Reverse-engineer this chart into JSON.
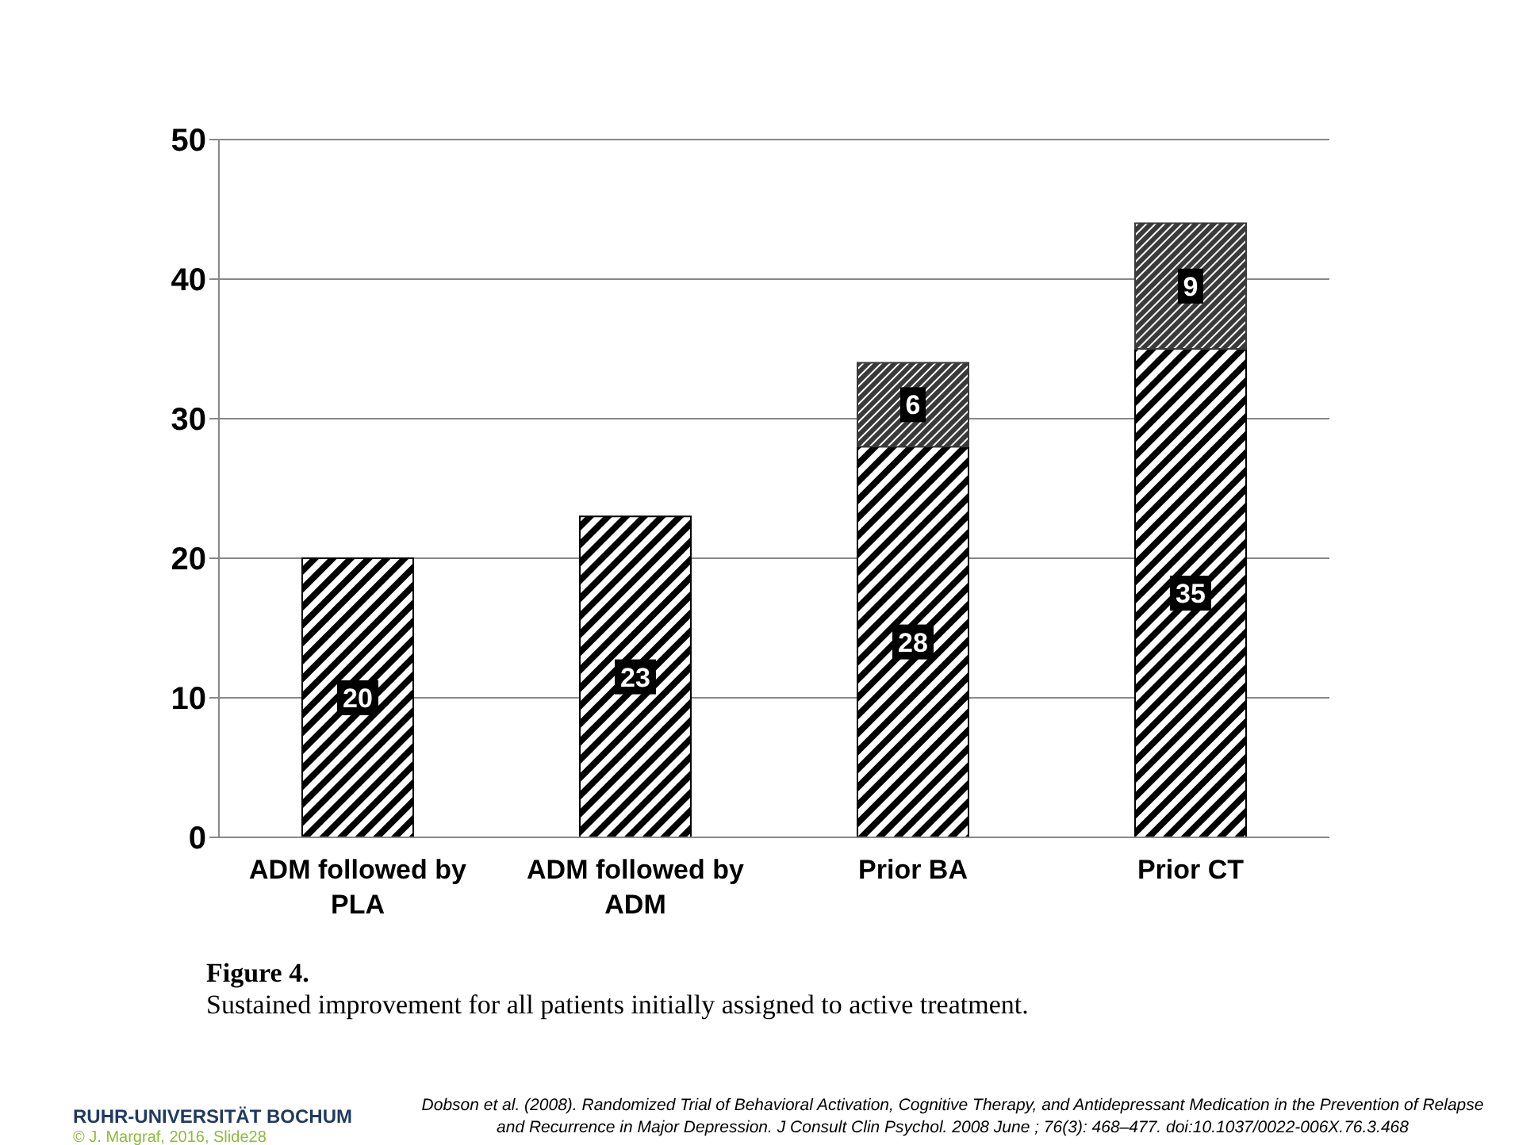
{
  "chart_data": {
    "type": "bar",
    "stacked": true,
    "categories": [
      "ADM followed by PLA",
      "ADM followed by ADM",
      "Prior BA",
      "Prior CT"
    ],
    "series": [
      {
        "color": "#000000",
        "values": [
          20,
          23,
          28,
          35
        ]
      },
      {
        "color": "#3a3a3a",
        "values": [
          null,
          null,
          6,
          9
        ]
      }
    ],
    "ylim": [
      0,
      50
    ],
    "yticks": [
      0,
      10,
      20,
      30,
      40,
      50
    ],
    "grid": "y",
    "data_labels": true,
    "annotations": [
      "Figure 4.",
      "Sustained improvement for all patients initially assigned to active treatment.",
      "RUHR-UNIVERSITÄT BOCHUM",
      "© J. Margraf, 2016, Slide28",
      "Dobson et al. (2008). Randomized Trial of Behavioral Activation, Cognitive Therapy, and Antidepressant Medication in the Prevention of Relapse and Recurrence in Major Depression. J Consult Clin Psychol. 2008 June ; 76(3): 468–477. doi:10.1037/0022-006X.76.3.468"
    ]
  }
}
